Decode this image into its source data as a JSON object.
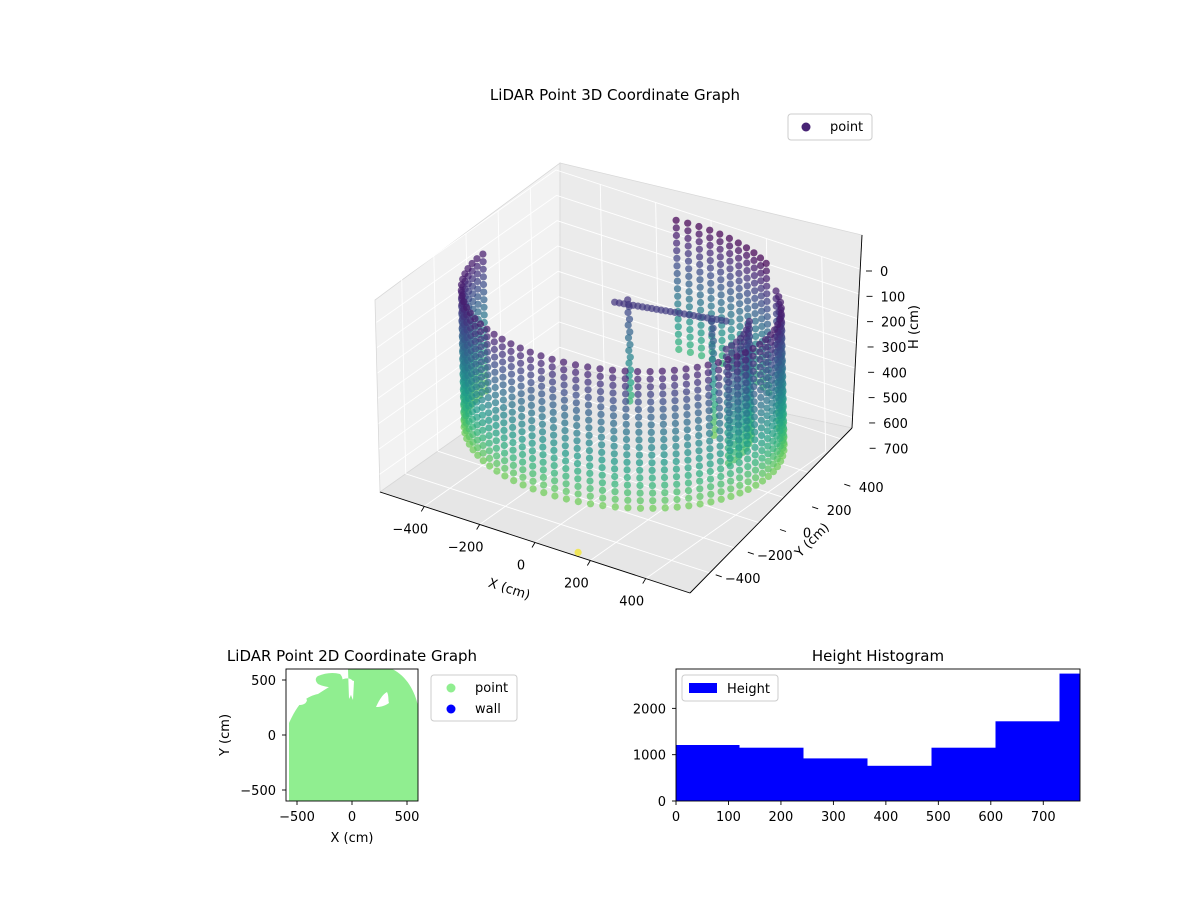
{
  "chart_data": [
    {
      "type": "scatter",
      "title": "LiDAR Point 3D Coordinate Graph",
      "xlabel": "X (cm)",
      "ylabel": "Y (cm)",
      "zlabel": "H (cm)",
      "xlim": [
        -560,
        560
      ],
      "ylim": [
        -560,
        560
      ],
      "zlim": [
        770,
        0
      ],
      "x_ticks": [
        "−400",
        "−200",
        "0",
        "200",
        "400"
      ],
      "y_ticks": [
        "−400",
        "−200",
        "0",
        "200",
        "400"
      ],
      "z_ticks": [
        "0",
        "100",
        "200",
        "300",
        "400",
        "500",
        "600",
        "700"
      ],
      "colormap": "viridis",
      "grid": true,
      "legend": {
        "position": "upper-right",
        "entries": [
          {
            "label": "point",
            "color": "#482475"
          }
        ]
      },
      "series": [
        {
          "name": "point",
          "shapes": [
            {
              "kind": "ring",
              "radius": 500,
              "theta_range": [
                -180,
                45
              ],
              "h_range": [
                60,
                600
              ]
            },
            {
              "kind": "ring",
              "radius": 500,
              "theta_range": [
                55,
                100
              ],
              "h_range": [
                0,
                520
              ]
            },
            {
              "kind": "ring",
              "radius": 400,
              "theta_range": [
                -5,
                30
              ],
              "h_range": [
                100,
                560
              ]
            },
            {
              "kind": "line",
              "from": [
                -60,
                60
              ],
              "to": [
                260,
                230
              ],
              "h": 120
            },
            {
              "kind": "column",
              "at": [
                -40,
                100
              ],
              "h_range": [
                120,
                520
              ]
            },
            {
              "kind": "column",
              "at": [
                220,
                180
              ],
              "h_range": [
                150,
                600
              ]
            },
            {
              "kind": "outlier",
              "at": [
                150,
                -550
              ],
              "h": 760
            }
          ]
        }
      ]
    },
    {
      "type": "scatter",
      "title": "LiDAR Point 2D Coordinate Graph",
      "xlabel": "X (cm)",
      "ylabel": "Y (cm)",
      "xlim": [
        -600,
        600
      ],
      "ylim": [
        -600,
        600
      ],
      "x_ticks": [
        "−500",
        "0",
        "500"
      ],
      "y_ticks": [
        "500",
        "0",
        "−500"
      ],
      "legend": {
        "position": "outside-right",
        "entries": [
          {
            "label": "point",
            "color": "#90ee90"
          },
          {
            "label": "wall",
            "color": "#0000ff"
          }
        ]
      },
      "series": [
        {
          "name": "point",
          "color": "#90ee90",
          "fill": "dense-disc"
        }
      ]
    },
    {
      "type": "bar",
      "subtype": "histogram",
      "title": "Height Histogram",
      "xlabel": "",
      "ylabel": "",
      "xlim": [
        0,
        770
      ],
      "ylim": [
        0,
        2850
      ],
      "x_ticks": [
        "0",
        "100",
        "200",
        "300",
        "400",
        "500",
        "600",
        "700"
      ],
      "y_ticks": [
        "0",
        "1000",
        "2000"
      ],
      "bin_edges": [
        0,
        121,
        243,
        365,
        487,
        609,
        731,
        770
      ],
      "values": [
        1210,
        1150,
        920,
        760,
        1150,
        1720,
        2750
      ],
      "color": "#0000ff",
      "legend": {
        "position": "upper-left",
        "entries": [
          {
            "label": "Height",
            "color": "#0000ff"
          }
        ]
      },
      "series": [
        {
          "name": "Height",
          "values": [
            1210,
            1150,
            920,
            760,
            1150,
            1720,
            2750
          ]
        }
      ]
    }
  ]
}
